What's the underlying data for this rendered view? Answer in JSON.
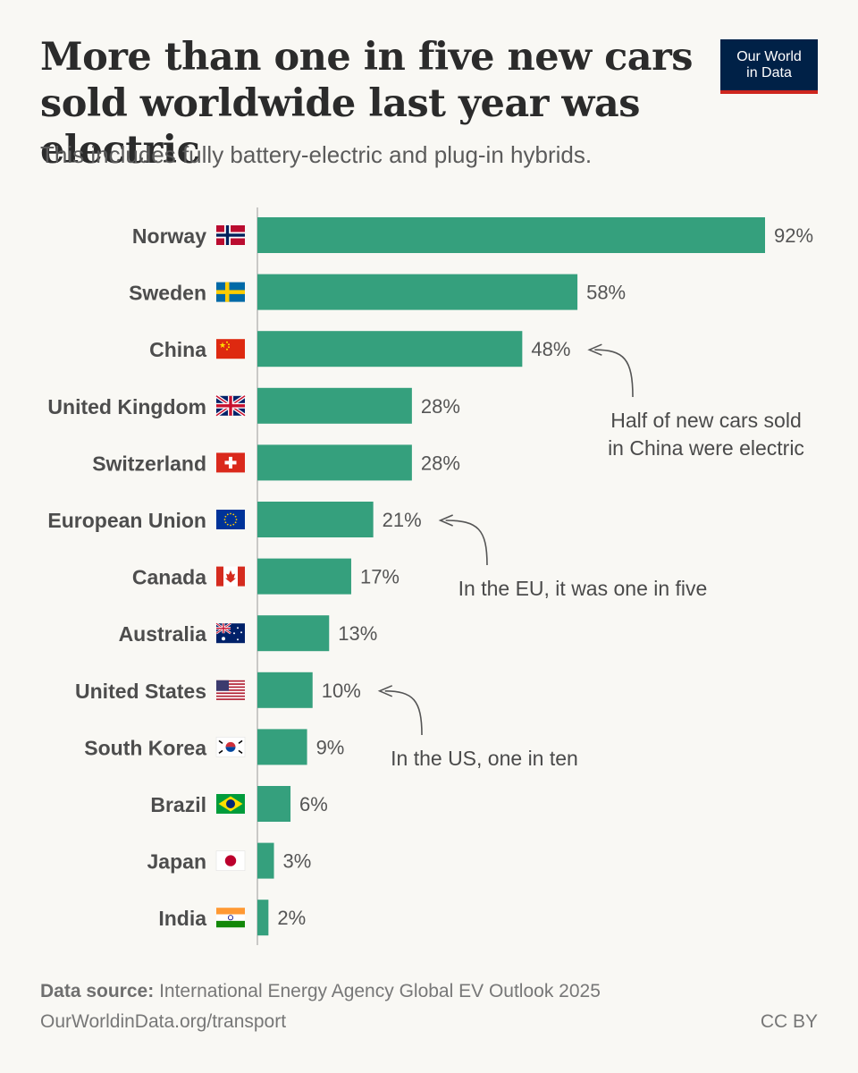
{
  "header": {
    "title": "More than one in five new cars sold worldwide last year was electric",
    "subtitle": "This includes fully battery-electric and plug-in hybrids.",
    "logo_line1": "Our World",
    "logo_line2": "in Data"
  },
  "chart_data": {
    "type": "bar",
    "orientation": "horizontal",
    "categories": [
      "Norway",
      "Sweden",
      "China",
      "United Kingdom",
      "Switzerland",
      "European Union",
      "Canada",
      "Australia",
      "United States",
      "South Korea",
      "Brazil",
      "Japan",
      "India"
    ],
    "values": [
      92,
      58,
      48,
      28,
      28,
      21,
      17,
      13,
      10,
      9,
      6,
      3,
      2
    ],
    "value_labels": [
      "92%",
      "58%",
      "48%",
      "28%",
      "28%",
      "21%",
      "17%",
      "13%",
      "10%",
      "9%",
      "6%",
      "3%",
      "2%"
    ],
    "flags": [
      "norway-flag",
      "sweden-flag",
      "china-flag",
      "uk-flag",
      "switzerland-flag",
      "eu-flag",
      "canada-flag",
      "australia-flag",
      "usa-flag",
      "south-korea-flag",
      "brazil-flag",
      "japan-flag",
      "india-flag"
    ],
    "xlim": [
      0,
      92
    ],
    "bar_color": "#35a07d",
    "grid": false,
    "annotations": [
      {
        "target": "China",
        "lines": [
          "Half of new cars sold",
          "in China were electric"
        ]
      },
      {
        "target": "European Union",
        "lines": [
          "In the EU, it was one in five"
        ]
      },
      {
        "target": "United States",
        "lines": [
          "In the US, one in ten"
        ]
      }
    ]
  },
  "footer": {
    "source_label": "Data source:",
    "source_text": "International Energy Agency Global EV Outlook 2025",
    "url": "OurWorldinData.org/transport",
    "license": "CC BY"
  },
  "colors": {
    "background": "#f9f8f4",
    "bar": "#35a07d",
    "logo_bg": "#002147",
    "logo_accent": "#ce261e"
  }
}
